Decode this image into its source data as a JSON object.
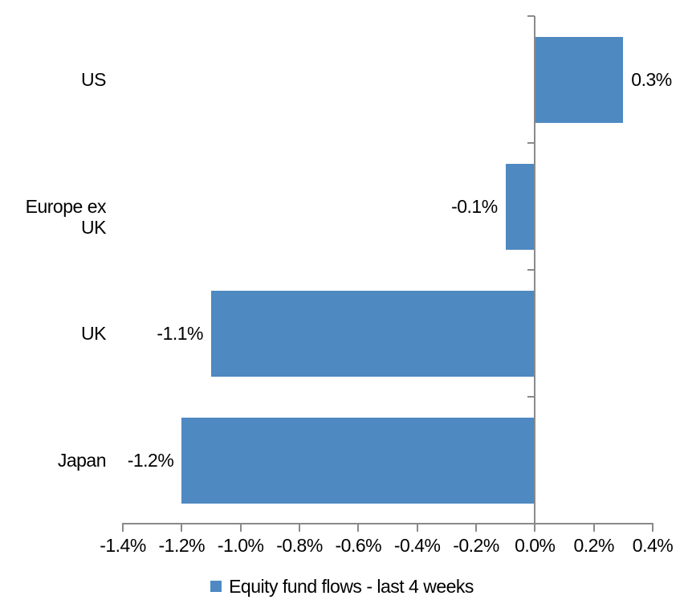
{
  "chart_data": {
    "type": "bar",
    "orientation": "horizontal",
    "title": "",
    "categories": [
      "US",
      "Europe ex UK",
      "UK",
      "Japan"
    ],
    "values": [
      0.3,
      -0.1,
      -1.1,
      -1.2
    ],
    "data_labels": [
      "0.3%",
      "-0.1%",
      "-1.1%",
      "-1.2%"
    ],
    "x_tick_values": [
      -1.4,
      -1.2,
      -1.0,
      -0.8,
      -0.6,
      -0.4,
      -0.2,
      0.0,
      0.2,
      0.4
    ],
    "x_tick_labels": [
      "-1.4%",
      "-1.2%",
      "-1.0%",
      "-0.8%",
      "-0.6%",
      "-0.4%",
      "-0.2%",
      "0.0%",
      "0.2%",
      "0.4%"
    ],
    "xlim": [
      -1.4,
      0.4
    ],
    "grid": false,
    "legend": [
      "Equity fund flows - last 4 weeks"
    ],
    "legend_position": "bottom",
    "colors": {
      "bar": "#4E89C1",
      "axis": "#8A8A8A",
      "text": "#000000",
      "background": "#FFFFFF"
    }
  }
}
